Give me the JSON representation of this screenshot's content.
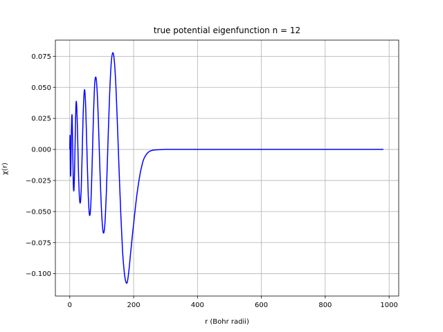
{
  "chart_data": {
    "type": "line",
    "title": "true potential eigenfunction n = 12",
    "xlabel": "r  (Bohr radii)",
    "ylabel": "χ(r)",
    "xlim": [
      -45,
      1030
    ],
    "ylim": [
      -0.118,
      0.088
    ],
    "xticks": [
      0,
      200,
      400,
      600,
      800,
      1000
    ],
    "xtick_labels": [
      "0",
      "200",
      "400",
      "600",
      "800",
      "1000"
    ],
    "yticks": [
      -0.1,
      -0.075,
      -0.05,
      -0.025,
      0.0,
      0.025,
      0.05,
      0.075
    ],
    "ytick_labels": [
      "−0.100",
      "−0.075",
      "−0.050",
      "−0.025",
      "0.000",
      "0.025",
      "0.050",
      "0.075"
    ],
    "grid": true,
    "colors": {
      "line": "#0000ff",
      "grid": "#b0b0b0",
      "axes": "#000000"
    },
    "series": [
      {
        "name": "",
        "x": [
          0,
          1,
          2,
          3,
          4,
          5,
          6,
          7,
          8,
          9,
          11,
          13,
          15,
          17,
          19,
          21,
          24,
          27,
          30,
          33,
          36,
          39,
          42,
          46,
          50,
          54,
          58,
          62,
          66,
          70,
          74,
          78,
          82,
          86,
          90,
          95,
          100,
          105,
          110,
          115,
          120,
          125,
          130,
          135,
          140,
          145,
          150,
          155,
          160,
          165,
          170,
          175,
          180,
          185,
          190,
          195,
          200,
          205,
          210,
          215,
          220,
          225,
          230,
          235,
          240,
          245,
          250,
          255,
          260,
          270,
          280,
          290,
          300,
          310,
          320,
          330,
          340,
          350,
          360,
          370,
          380,
          390,
          400,
          420,
          440,
          460,
          500,
          600,
          700,
          800,
          900,
          982
        ],
        "y": [
          0,
          0.011,
          -0.015,
          -0.021,
          -0.005,
          0.012,
          0.022,
          0.028,
          0.02,
          0.006,
          -0.026,
          -0.033,
          -0.018,
          0.008,
          0.032,
          0.038,
          0.018,
          -0.015,
          -0.037,
          -0.043,
          -0.031,
          -0.002,
          0.028,
          0.048,
          0.034,
          -0.003,
          -0.037,
          -0.053,
          -0.044,
          -0.013,
          0.025,
          0.052,
          0.058,
          0.046,
          0.02,
          -0.02,
          -0.052,
          -0.067,
          -0.06,
          -0.032,
          0.008,
          0.045,
          0.07,
          0.078,
          0.07,
          0.048,
          0.015,
          -0.02,
          -0.053,
          -0.08,
          -0.097,
          -0.106,
          -0.107,
          -0.098,
          -0.085,
          -0.072,
          -0.06,
          -0.048,
          -0.037,
          -0.028,
          -0.02,
          -0.014,
          -0.009,
          -0.006,
          -0.004,
          -0.0025,
          -0.0015,
          -0.001,
          -0.0006,
          -0.0003,
          -0.0002,
          -0.0001,
          0,
          0,
          0,
          0,
          0,
          0,
          0,
          0,
          0,
          0,
          0,
          0,
          0,
          0,
          0,
          0,
          0,
          0,
          0,
          0
        ]
      }
    ]
  }
}
